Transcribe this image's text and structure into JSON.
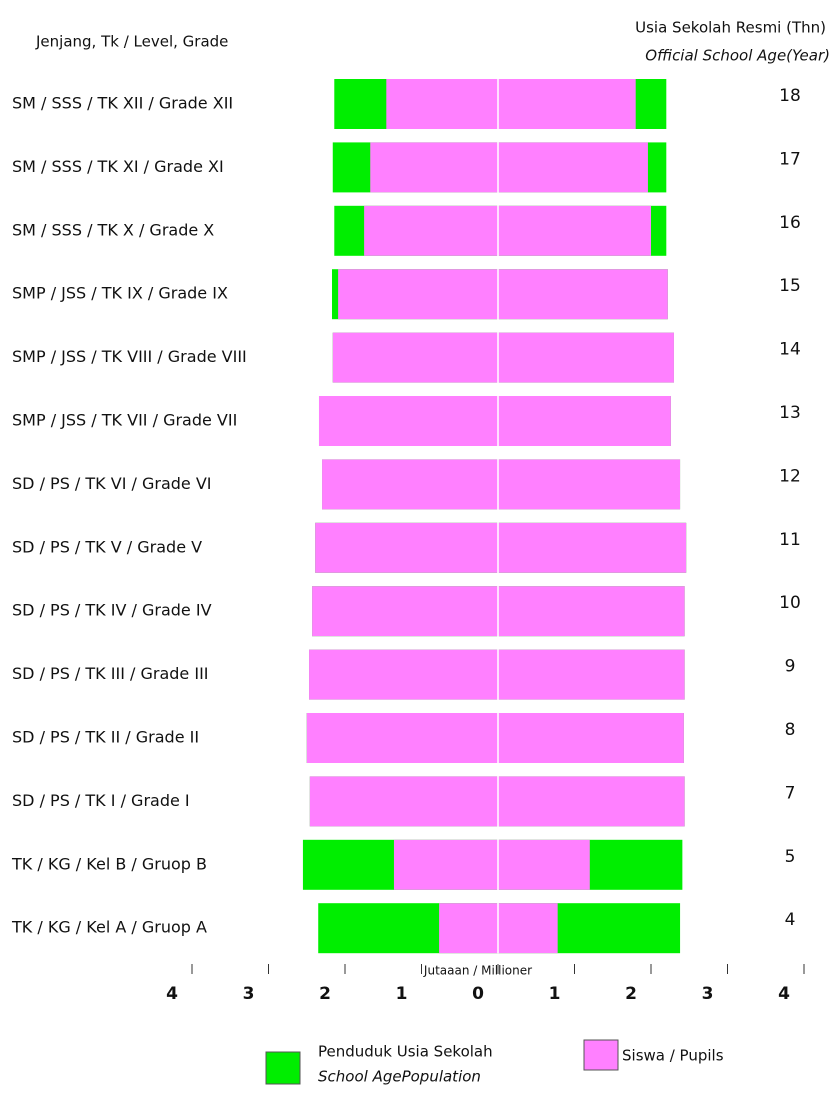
{
  "chart_data": {
    "type": "butterfly-bar",
    "header_left": "Jenjang, Tk / Level, Grade",
    "header_right": "Usia Sekolah Resmi (Thn)",
    "header_right_sub": "Official School Age(Year)",
    "x_label": "Jutaaan / Millioner",
    "categories": [
      "SM / SSS /  TK XII / Grade XII",
      "SM / SSS / TK  XI / Grade XI",
      "SM / SSS / TK X / Grade X",
      "SMP / JSS /  TK IX / Grade IX",
      "SMP / JSS /  TK VIII / Grade VIII",
      "SMP / JSS /  TK VII / Grade  VII",
      "SD / PS / TK VI / Grade VI",
      "SD / PS / TK V / Grade V",
      "SD / PS / TK IV / Grade IV",
      "SD / PS / TK III / Grade III",
      "SD / PS / TK II / Grade II",
      "SD / PS / TK I / Grade I",
      "TK / KG / Kel B / Gruop B",
      "TK / KG / Kel A / Gruop A"
    ],
    "ages": [
      18,
      17,
      16,
      15,
      14,
      13,
      12,
      11,
      10,
      9,
      8,
      7,
      5,
      4
    ],
    "series": [
      {
        "name": "Penduduk Usia Sekolah",
        "name_sub": "School AgePopulation",
        "color": "#00ee00",
        "values_left": [
          2.14,
          2.16,
          2.14,
          2.17,
          2.16,
          2.34,
          2.3,
          2.39,
          2.43,
          2.47,
          2.5,
          2.46,
          2.55,
          2.35
        ],
        "values_right": [
          2.2,
          2.2,
          2.2,
          2.22,
          2.3,
          2.26,
          2.38,
          2.46,
          2.44,
          2.44,
          2.43,
          2.44,
          2.41,
          2.38
        ]
      },
      {
        "name": "Siswa / Pupils",
        "color": "#ff80ff",
        "values_left": [
          1.46,
          1.67,
          1.75,
          2.09,
          2.16,
          2.34,
          2.3,
          2.39,
          2.43,
          2.47,
          2.5,
          2.46,
          1.36,
          0.77
        ],
        "values_right": [
          1.8,
          1.96,
          2.0,
          2.22,
          2.3,
          2.26,
          2.38,
          2.46,
          2.44,
          2.44,
          2.43,
          2.44,
          1.2,
          0.78
        ]
      }
    ],
    "xlim": [
      -4,
      4
    ],
    "xticks": [
      {
        "value": -4,
        "label": "4"
      },
      {
        "value": -3,
        "label": "3"
      },
      {
        "value": -2,
        "label": "2"
      },
      {
        "value": -1,
        "label": "1"
      },
      0,
      1,
      2,
      3,
      4
    ]
  }
}
